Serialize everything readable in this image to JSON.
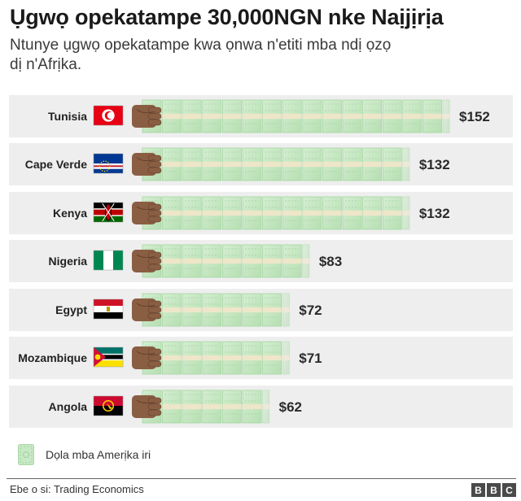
{
  "header": {
    "title": "Ụgwọ opekatampe 30,000NGN nke Naịjịrịa",
    "subtitle": "Ntunye ụgwọ opekatampe kwa ọnwa n'etiti mba ndị ọzọ dị n'Afrịka."
  },
  "legend": {
    "label": "Dọla mba Amerịka iri",
    "icon": "banknote-icon"
  },
  "footer": {
    "source": "Ebe o si: Trading Economics",
    "logo": [
      "B",
      "B",
      "C"
    ]
  },
  "colors": {
    "row_background": "#eeeeee",
    "note_fill": "#c9e8c6",
    "note_pattern": "#9fd39b",
    "note_band": "#eee6c9",
    "hand": "#8a5e43"
  },
  "chart_data": {
    "type": "bar",
    "unit_per_icon": 10,
    "categories": [
      "Tunisia",
      "Cape Verde",
      "Kenya",
      "Nigeria",
      "Egypt",
      "Mozambique",
      "Angola"
    ],
    "values": [
      152,
      132,
      132,
      83,
      72,
      71,
      62
    ],
    "value_labels": [
      "$152",
      "$132",
      "$132",
      "$83",
      "$72",
      "$71",
      "$62"
    ],
    "flags": [
      "tunisia-flag",
      "cape-verde-flag",
      "kenya-flag",
      "nigeria-flag",
      "egypt-flag",
      "mozambique-flag",
      "angola-flag"
    ]
  }
}
